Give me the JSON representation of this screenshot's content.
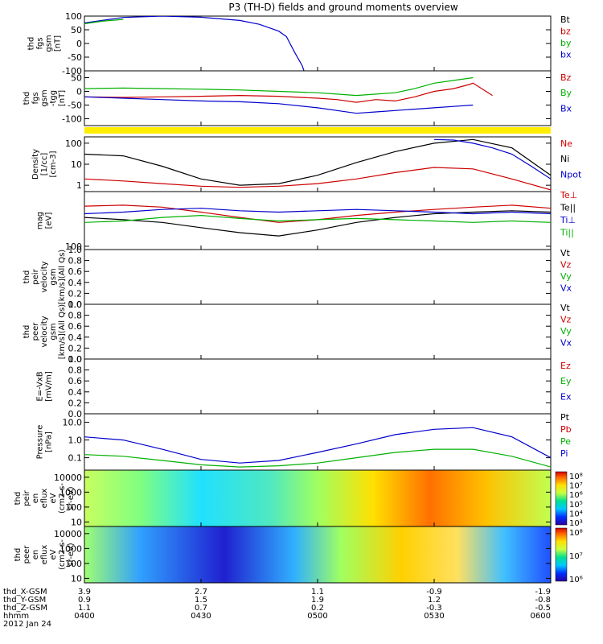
{
  "title": "P3 (TH-D) fields and ground moments overview",
  "chart_data": {
    "type": "line",
    "date": "2012 Jan 24",
    "x": {
      "ticks": [
        "0400",
        "0430",
        "0500",
        "0530",
        "0600"
      ],
      "range": [
        "04:00",
        "06:00"
      ]
    },
    "ephemeris": {
      "rows": [
        {
          "name": "thd_X-GSM",
          "values": [
            "3.9",
            "2.7",
            "1.1",
            "-0.9",
            "-1.9"
          ]
        },
        {
          "name": "thd_Y-GSM",
          "values": [
            "0.9",
            "1.5",
            "1.9",
            "1.2",
            "-0.8"
          ]
        },
        {
          "name": "thd_Z-GSM",
          "values": [
            "1.1",
            "0.7",
            "0.2",
            "-0.3",
            "-0.5"
          ]
        },
        {
          "name": "hhmm",
          "values": [
            "0400",
            "0430",
            "0500",
            "0530",
            "0600"
          ]
        }
      ]
    },
    "panels": [
      {
        "id": "fgs",
        "ylabel": [
          "thd",
          "fgs",
          "gsm",
          "[nT]"
        ],
        "ylim": [
          -100,
          100
        ],
        "scale": "linear",
        "yticks": [
          "100",
          "50",
          "0",
          "-50",
          "-100"
        ],
        "legend": [
          "Bt",
          "bz",
          "by",
          "bx"
        ],
        "colors": [
          "#000000",
          "#cc0000",
          "#00b000",
          "#0000cc"
        ],
        "series": [
          {
            "name": "bx",
            "x": [
              0,
              10,
              20,
              30,
              40,
              45,
              50,
              52,
              54,
              56,
              56.5
            ],
            "y": [
              75,
              95,
              100,
              96,
              84,
              70,
              45,
              25,
              -30,
              -80,
              -100
            ]
          },
          {
            "name": "by",
            "x": [
              0,
              5,
              10
            ],
            "y": [
              72,
              82,
              88
            ]
          }
        ]
      },
      {
        "id": "fgl",
        "ylabel": [
          "thd",
          "fgs",
          "gsm",
          "-tgg",
          "[nT]"
        ],
        "ylim": [
          -125,
          75
        ],
        "scale": "linear",
        "yticks": [
          "50",
          "0",
          "-50",
          "-100"
        ],
        "legend": [
          "Bz",
          "By",
          "Bx"
        ],
        "colors": [
          "#cc0000",
          "#00b000",
          "#0000cc"
        ],
        "series": [
          {
            "name": "Bz",
            "x": [
              0,
              10,
              20,
              30,
              40,
              50,
              60,
              65,
              70,
              75,
              80,
              85,
              90,
              95,
              99,
              100,
              105
            ],
            "y": [
              -20,
              -22,
              -20,
              -18,
              -15,
              -18,
              -25,
              -30,
              -40,
              -30,
              -35,
              -20,
              0,
              10,
              25,
              30,
              -15
            ]
          },
          {
            "name": "By",
            "x": [
              0,
              10,
              20,
              30,
              40,
              50,
              60,
              65,
              70,
              75,
              80,
              85,
              90,
              95,
              100
            ],
            "y": [
              10,
              12,
              10,
              8,
              5,
              0,
              -5,
              -10,
              -15,
              -10,
              -5,
              10,
              30,
              40,
              50
            ]
          },
          {
            "name": "Bx",
            "x": [
              0,
              10,
              20,
              30,
              40,
              50,
              60,
              65,
              70,
              75,
              80,
              85,
              90,
              95,
              100
            ],
            "y": [
              -20,
              -25,
              -30,
              -35,
              -38,
              -45,
              -60,
              -70,
              -80,
              -75,
              -70,
              -65,
              -60,
              -55,
              -50
            ]
          }
        ]
      },
      {
        "id": "density",
        "ylabel": [
          "Density",
          "[1/cc]",
          "[cm-3]"
        ],
        "ylim": [
          0.5,
          200
        ],
        "scale": "log",
        "yticks": [
          "100",
          "10",
          "1"
        ],
        "legend": [
          "Ne",
          "Ni",
          "Npot"
        ],
        "colors": [
          "#cc0000",
          "#000000",
          "#0000cc"
        ],
        "series": [
          {
            "name": "Ni",
            "x": [
              0,
              10,
              20,
              30,
              40,
              50,
              60,
              70,
              80,
              90,
              100,
              110,
              120
            ],
            "y": [
              30,
              25,
              8,
              2,
              1,
              1.2,
              3,
              12,
              40,
              100,
              150,
              60,
              3
            ]
          },
          {
            "name": "Ne",
            "x": [
              0,
              10,
              20,
              30,
              40,
              50,
              60,
              70,
              80,
              90,
              100,
              110,
              120
            ],
            "y": [
              2,
              1.6,
              1.2,
              0.9,
              0.8,
              0.9,
              1.2,
              2,
              4,
              7,
              6,
              2,
              0.6
            ]
          },
          {
            "name": "Npot",
            "x": [
              90,
              95,
              100,
              105,
              110,
              115,
              120
            ],
            "y": [
              150,
              140,
              100,
              60,
              30,
              8,
              2
            ]
          }
        ]
      },
      {
        "id": "temp",
        "ylabel": [
          "mag",
          "[eV]"
        ],
        "ylim": [
          80,
          4000
        ],
        "scale": "log",
        "yticks": [
          "100"
        ],
        "legend": [
          "Te⊥",
          "Te||",
          "Ti⊥",
          "Ti||"
        ],
        "colors": [
          "#cc0000",
          "#000000",
          "#0000cc",
          "#00b000"
        ],
        "series": [
          {
            "name": "Te⊥",
            "x": [
              0,
              10,
              20,
              30,
              40,
              50,
              60,
              70,
              80,
              90,
              100,
              110,
              120
            ],
            "y": [
              1500,
              1600,
              1400,
              1000,
              700,
              500,
              600,
              800,
              1000,
              1200,
              1400,
              1600,
              1300
            ]
          },
          {
            "name": "Te||",
            "x": [
              0,
              10,
              20,
              30,
              40,
              50,
              60,
              70,
              80,
              90,
              100,
              110,
              120
            ],
            "y": [
              700,
              600,
              500,
              350,
              250,
              200,
              300,
              500,
              700,
              900,
              1000,
              1100,
              1000
            ]
          },
          {
            "name": "Ti⊥",
            "x": [
              0,
              10,
              20,
              30,
              40,
              50,
              60,
              70,
              80,
              90,
              100,
              110,
              120
            ],
            "y": [
              900,
              1000,
              1200,
              1300,
              1100,
              1000,
              1100,
              1200,
              1100,
              1000,
              900,
              1000,
              900
            ]
          },
          {
            "name": "Ti||",
            "x": [
              0,
              10,
              20,
              30,
              40,
              50,
              60,
              70,
              80,
              90,
              100,
              110,
              120
            ],
            "y": [
              500,
              550,
              700,
              800,
              650,
              550,
              600,
              650,
              600,
              550,
              500,
              550,
              500
            ]
          }
        ]
      },
      {
        "id": "peir-vel",
        "ylabel": [
          "thd",
          "peir",
          "velocity",
          "gsm",
          "[km/s](All Qs)"
        ],
        "ylim": [
          0,
          1
        ],
        "scale": "linear",
        "yticks": [
          "1.0",
          "0.8",
          "0.6",
          "0.4",
          "0.2",
          "0.0"
        ],
        "legend": [
          "Vt",
          "Vz",
          "Vy",
          "Vx"
        ],
        "colors": [
          "#000000",
          "#cc0000",
          "#00b000",
          "#0000cc"
        ],
        "series": []
      },
      {
        "id": "peer-vel",
        "ylabel": [
          "thd",
          "peer",
          "velocity",
          "gsm",
          "[km/s](All Qs)"
        ],
        "ylim": [
          0,
          1
        ],
        "scale": "linear",
        "yticks": [
          "1.0",
          "0.8",
          "0.6",
          "0.4",
          "0.2",
          "0.0"
        ],
        "legend": [
          "Vt",
          "Vz",
          "Vy",
          "Vx"
        ],
        "colors": [
          "#000000",
          "#cc0000",
          "#00b000",
          "#0000cc"
        ],
        "series": []
      },
      {
        "id": "vxb",
        "ylabel": [
          "E=-VxB",
          "[mV/m]"
        ],
        "ylim": [
          0,
          1
        ],
        "scale": "linear",
        "yticks": [
          "1.0",
          "0.8",
          "0.6",
          "0.4",
          "0.2",
          "0.0"
        ],
        "legend": [
          "Ez",
          "Ey",
          "Ex"
        ],
        "colors": [
          "#cc0000",
          "#00b000",
          "#0000cc"
        ],
        "series": []
      },
      {
        "id": "pressure",
        "ylabel": [
          "Pressure",
          "[nPa]"
        ],
        "ylim": [
          0.02,
          30
        ],
        "scale": "log",
        "yticks": [
          "10.0",
          "1.0",
          "0.1"
        ],
        "legend": [
          "Pt",
          "Pb",
          "Pe",
          "Pi"
        ],
        "colors": [
          "#000000",
          "#cc0000",
          "#00b000",
          "#0000cc"
        ],
        "series": [
          {
            "name": "Pi",
            "x": [
              0,
              10,
              20,
              30,
              40,
              50,
              60,
              70,
              80,
              90,
              100,
              110,
              120
            ],
            "y": [
              1.5,
              1,
              0.3,
              0.08,
              0.05,
              0.07,
              0.2,
              0.6,
              2,
              4,
              5,
              1.5,
              0.1
            ]
          },
          {
            "name": "Pe",
            "x": [
              0,
              10,
              20,
              30,
              40,
              50,
              60,
              70,
              80,
              90,
              100,
              110,
              120
            ],
            "y": [
              0.15,
              0.12,
              0.07,
              0.04,
              0.03,
              0.035,
              0.05,
              0.1,
              0.2,
              0.3,
              0.3,
              0.12,
              0.03
            ]
          }
        ]
      },
      {
        "id": "peir-eflux",
        "type": "heatmap",
        "ylabel": [
          "thd",
          "peir",
          "en",
          "eflux",
          "eV",
          "(cm2-s-",
          "sr-eV)"
        ],
        "ylim": [
          5,
          30000
        ],
        "scale": "log",
        "yticks": [
          "10000",
          "1000",
          "100",
          "10"
        ],
        "colorbar": {
          "ticks": [
            "10⁸",
            "10⁷",
            "10⁶",
            "10⁵",
            "10⁴",
            "10³"
          ]
        }
      },
      {
        "id": "peer-eflux",
        "type": "heatmap",
        "ylabel": [
          "thd",
          "peer",
          "en",
          "eflux",
          "eV",
          "(cm2-s-",
          "sr-eV)"
        ],
        "ylim": [
          5,
          30000
        ],
        "scale": "log",
        "yticks": [
          "10000",
          "1000",
          "100",
          "10"
        ],
        "colorbar": {
          "ticks": [
            "10⁸",
            "10⁷",
            "10⁶"
          ]
        }
      }
    ]
  }
}
